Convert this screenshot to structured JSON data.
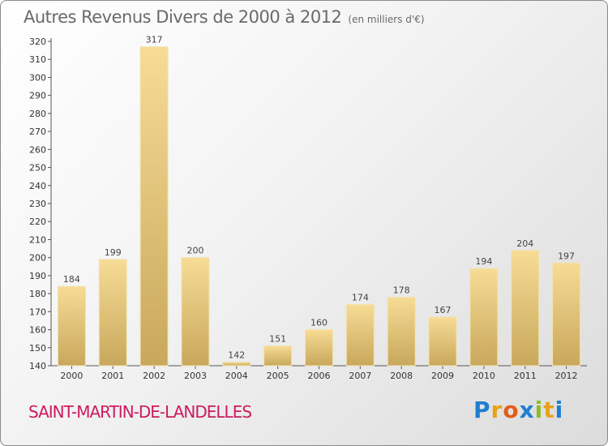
{
  "title": "Autres Revenus Divers de 2000 à 2012",
  "subtitle": "(en milliers d'€)",
  "location": "SAINT-MARTIN-DE-LANDELLES",
  "logo": {
    "letters": [
      "P",
      "r",
      "o",
      "x",
      "i",
      "t",
      "i"
    ],
    "colors": [
      "#1d7fd1",
      "#e8a21a",
      "#e25d1a",
      "#1d7fd1",
      "#8dbb2a",
      "#e8a21a",
      "#1d7fd1"
    ]
  },
  "chart_data": {
    "type": "bar",
    "categories": [
      "2000",
      "2001",
      "2002",
      "2003",
      "2004",
      "2005",
      "2006",
      "2007",
      "2008",
      "2009",
      "2010",
      "2011",
      "2012"
    ],
    "values": [
      184,
      199,
      317,
      200,
      142,
      151,
      160,
      174,
      178,
      167,
      194,
      204,
      197
    ],
    "ylim": [
      140,
      320
    ],
    "yticks": [
      140,
      150,
      160,
      170,
      180,
      190,
      200,
      210,
      220,
      230,
      240,
      250,
      260,
      270,
      280,
      290,
      300,
      310,
      320
    ],
    "xlabel": "",
    "ylabel": "",
    "grid": false,
    "bar_color": "#e6c77e"
  }
}
